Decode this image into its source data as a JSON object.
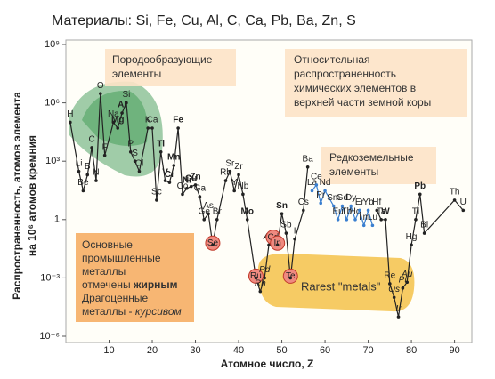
{
  "chart_data": {
    "type": "line",
    "title": "Материалы: Si, Fe, Cu, Al, C, Ca, Pb, Ba, Zn, S",
    "x_label": "Атомное число, Z",
    "y_label": [
      "Распространенность, атомов элемента",
      "на 10⁶ атомов кремния"
    ],
    "log_y": true,
    "xlim": [
      0,
      94
    ],
    "ylim": [
      1e-06,
      1000000000
    ],
    "xticks": [
      10,
      20,
      30,
      40,
      50,
      60,
      70,
      80,
      90
    ],
    "yticks": [
      {
        "value": 1e-06,
        "label": "10⁻⁶"
      },
      {
        "value": 0.001,
        "label": "10⁻³"
      },
      1,
      {
        "value": 1000,
        "label": "10³"
      },
      {
        "value": 1000000,
        "label": "10⁶"
      },
      {
        "value": 1000000000,
        "label": "10⁹"
      }
    ],
    "x": [
      1,
      3,
      4,
      5,
      6,
      7,
      8,
      9,
      11,
      12,
      13,
      14,
      15,
      16,
      17,
      19,
      20,
      21,
      22,
      23,
      24,
      25,
      26,
      27,
      28,
      29,
      30,
      31,
      32,
      33,
      34,
      35,
      37,
      38,
      39,
      40,
      41,
      42,
      44,
      45,
      46,
      47,
      48,
      49,
      50,
      51,
      52,
      53,
      55,
      56,
      57,
      58,
      59,
      60,
      62,
      63,
      64,
      65,
      66,
      67,
      68,
      69,
      70,
      71,
      72,
      73,
      74,
      75,
      76,
      77,
      78,
      79,
      80,
      81,
      82,
      83,
      90,
      92
    ],
    "point_labels": [
      "H",
      "Li",
      "Be",
      "B",
      "C",
      "N",
      "O",
      "F",
      "Na",
      "Mg",
      "Al",
      "Si",
      "P",
      "S",
      "Cl",
      "K",
      "Ca",
      "Sc",
      "Ti",
      "V",
      "Cr",
      "Mn",
      "Fe",
      "Co",
      "Ni",
      "Cu",
      "Zn",
      "Ga",
      "Ge",
      "As",
      "Se",
      "Br",
      "Rb",
      "Sr",
      "Y",
      "Zr",
      "Nb",
      "Mo",
      "Ru",
      "Rh",
      "Pd",
      "Ag",
      "Cd",
      "In",
      "Sn",
      "Sb",
      "Te",
      "I",
      "Cs",
      "Ba",
      "La",
      "Ce",
      "Pr",
      "Nd",
      "Sm",
      "Eu",
      "Gd",
      "Tb",
      "Dy",
      "Ho",
      "Er",
      "Tm",
      "Yb",
      "Lu",
      "Hf",
      "Ta",
      "W",
      "Re",
      "Os",
      "Ir",
      "Pt",
      "Au",
      "Hg",
      "Tl",
      "Pb",
      "Bi",
      "Th",
      "U"
    ],
    "point_label_style": [
      "normal",
      "normal",
      "normal",
      "normal",
      "normal",
      "normal",
      "normal",
      "normal",
      "normal",
      "bold",
      "bold",
      "normal",
      "normal",
      "normal",
      "normal",
      "normal",
      "normal",
      "normal",
      "bold",
      "bold",
      "bold",
      "bold",
      "bold",
      "normal",
      "bold",
      "bold",
      "bold",
      "normal",
      "normal",
      "normal",
      "circled",
      "normal",
      "normal",
      "normal",
      "normal",
      "normal",
      "normal",
      "bold",
      "circled",
      "italic",
      "italic",
      "italic",
      "circled",
      "circled",
      "bold",
      "normal",
      "circled",
      "normal",
      "normal",
      "normal",
      "normal",
      "normal",
      "normal",
      "normal",
      "normal",
      "normal",
      "normal",
      "normal",
      "normal",
      "normal",
      "normal",
      "normal",
      "normal",
      "normal",
      "normal",
      "normal",
      "bold",
      "normal",
      "italic",
      "italic",
      "italic",
      "italic",
      "normal",
      "normal",
      "bold",
      "normal",
      "normal",
      "normal"
    ],
    "series": [
      {
        "color": "#222222",
        "values": [
          100000,
          300,
          30,
          200,
          5000,
          100,
          3000000,
          2000,
          100000,
          50000,
          300000,
          1000000,
          3000,
          1000,
          300,
          50000,
          50000,
          10,
          3000,
          100,
          80,
          600,
          50000,
          20,
          40,
          50,
          60,
          15,
          1,
          2,
          0.05,
          1,
          100,
          300,
          30,
          200,
          20,
          1,
          0.001,
          0.0002,
          0.001,
          0.05,
          0.1,
          0.05,
          2,
          0.2,
          0.001,
          0.1,
          3,
          500,
          null,
          null,
          null,
          null,
          null,
          null,
          null,
          null,
          null,
          null,
          null,
          null,
          null,
          null,
          3,
          1,
          1,
          0.0005,
          0.0001,
          1e-05,
          0.0003,
          0.0006,
          0.05,
          1,
          20,
          0.2,
          10,
          3
        ]
      },
      {
        "color": "#3a7fd0",
        "values": [
          null,
          null,
          null,
          null,
          null,
          null,
          null,
          null,
          null,
          null,
          null,
          null,
          null,
          null,
          null,
          null,
          null,
          null,
          null,
          null,
          null,
          null,
          null,
          null,
          null,
          null,
          null,
          null,
          null,
          null,
          null,
          null,
          null,
          null,
          null,
          null,
          null,
          null,
          null,
          null,
          null,
          null,
          null,
          null,
          null,
          null,
          null,
          null,
          null,
          null,
          30,
          60,
          7,
          30,
          5,
          1,
          5,
          1,
          5,
          1,
          3,
          0.5,
          3,
          0.5,
          null,
          null,
          null,
          null,
          null,
          null,
          null,
          null,
          null,
          null,
          null,
          null,
          null,
          null
        ]
      }
    ],
    "annotations": {
      "rock": [
        "Породообразующие",
        "элементы"
      ],
      "relative": [
        "Относительная",
        "распространенность",
        "химических элементов в",
        "верхней части земной коры"
      ],
      "ree": [
        "Редкоземельные",
        "элементы"
      ],
      "rarest": "Rarest  \"metals\"",
      "note": {
        "l1": "Основные",
        "l2": "промышленные",
        "l3": "металлы",
        "l4a": "отмечены ",
        "l4b": "жирным",
        "l5": "Драгоценные",
        "l6a": "металлы - ",
        "l6b": "курсивом"
      }
    }
  }
}
